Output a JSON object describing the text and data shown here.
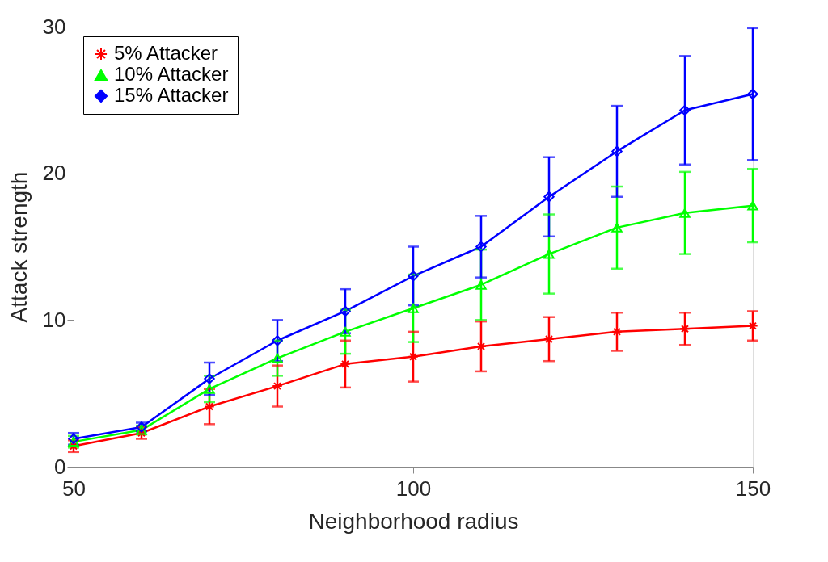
{
  "chart_data": {
    "type": "line",
    "xlabel": "Neighborhood radius",
    "ylabel": "Attack strength",
    "x": [
      50,
      60,
      70,
      80,
      90,
      100,
      110,
      120,
      130,
      140,
      150
    ],
    "series": [
      {
        "name": "5% Attacker",
        "color": "#ff0000",
        "marker": "cross",
        "values": [
          1.4,
          2.3,
          4.1,
          5.5,
          7.0,
          7.5,
          8.2,
          8.7,
          9.2,
          9.4,
          9.6
        ],
        "errors": [
          0.4,
          0.4,
          1.2,
          1.4,
          1.6,
          1.7,
          1.7,
          1.5,
          1.3,
          1.1,
          1.0
        ]
      },
      {
        "name": "10% Attacker",
        "color": "#00ff00",
        "marker": "triangle",
        "values": [
          1.7,
          2.5,
          5.3,
          7.4,
          9.2,
          10.8,
          12.4,
          14.5,
          16.3,
          17.3,
          17.8
        ],
        "errors": [
          0.4,
          0.3,
          0.9,
          1.2,
          1.5,
          2.3,
          2.4,
          2.7,
          2.8,
          2.8,
          2.5
        ]
      },
      {
        "name": "15% Attacker",
        "color": "#0000ff",
        "marker": "diamond",
        "values": [
          1.9,
          2.7,
          6.0,
          8.6,
          10.6,
          13.0,
          15.0,
          18.4,
          21.5,
          24.3,
          25.4
        ],
        "errors": [
          0.4,
          0.3,
          1.1,
          1.4,
          1.5,
          2.0,
          2.1,
          2.7,
          3.1,
          3.7,
          4.5
        ]
      }
    ],
    "xlim": [
      50,
      150
    ],
    "xticks": [
      50,
      100,
      150
    ],
    "ylim": [
      0,
      30
    ],
    "yticks": [
      0,
      10,
      20,
      30
    ],
    "legend": "top left",
    "grid": false,
    "line_style": "solid"
  }
}
